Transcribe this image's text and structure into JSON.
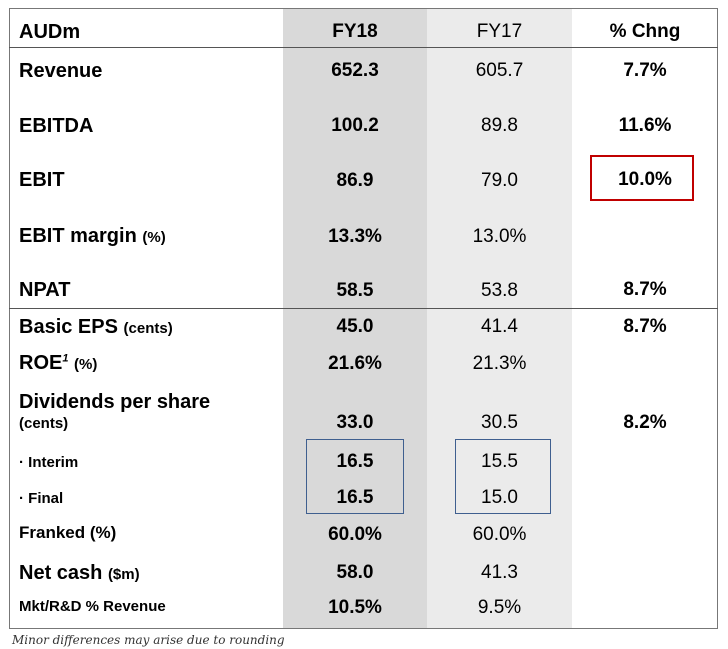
{
  "header": {
    "label": "AUDm",
    "fy18": "FY18",
    "fy17": "FY17",
    "chng": "% Chng"
  },
  "rows": {
    "revenue": {
      "label": "Revenue",
      "fy18": "652.3",
      "fy17": "605.7",
      "chng": "7.7%"
    },
    "ebitda": {
      "label": "EBITDA",
      "fy18": "100.2",
      "fy17": "89.8",
      "chng": "11.6%"
    },
    "ebit": {
      "label": "EBIT",
      "fy18": "86.9",
      "fy17": "79.0",
      "chng": "10.0%"
    },
    "ebit_margin": {
      "label": "EBIT margin",
      "unit": "(%)",
      "fy18": "13.3%",
      "fy17": "13.0%"
    },
    "npat": {
      "label": "NPAT",
      "fy18": "58.5",
      "fy17": "53.8",
      "chng": "8.7%"
    },
    "basic_eps": {
      "label": "Basic EPS",
      "unit": "(cents)",
      "fy18": "45.0",
      "fy17": "41.4",
      "chng": "8.7%"
    },
    "roe": {
      "label": "ROE",
      "sup": "1",
      "unit": "(%)",
      "fy18": "21.6%",
      "fy17": "21.3%"
    },
    "dps": {
      "label": "Dividends per share",
      "unit": "(cents)",
      "fy18": "33.0",
      "fy17": "30.5",
      "chng": "8.2%"
    },
    "interim": {
      "label": "· Interim",
      "fy18": "16.5",
      "fy17": "15.5"
    },
    "final": {
      "label": "· Final",
      "fy18": "16.5",
      "fy17": "15.0"
    },
    "franked": {
      "label": "Franked (%)",
      "fy18": "60.0%",
      "fy17": "60.0%"
    },
    "net_cash": {
      "label": "Net cash",
      "unit": "($m)",
      "fy18": "58.0",
      "fy17": "41.3"
    },
    "mkt_rd": {
      "label": "Mkt/R&D % Revenue",
      "fy18": "10.5%",
      "fy17": "9.5%"
    }
  },
  "footnote": "Minor differences may arise due to rounding",
  "colors": {
    "fy18_bg": "#d9d9d9",
    "fy17_bg": "#ebebeb",
    "highlight_red": "#c00000",
    "highlight_blue": "#3f5f8f"
  }
}
